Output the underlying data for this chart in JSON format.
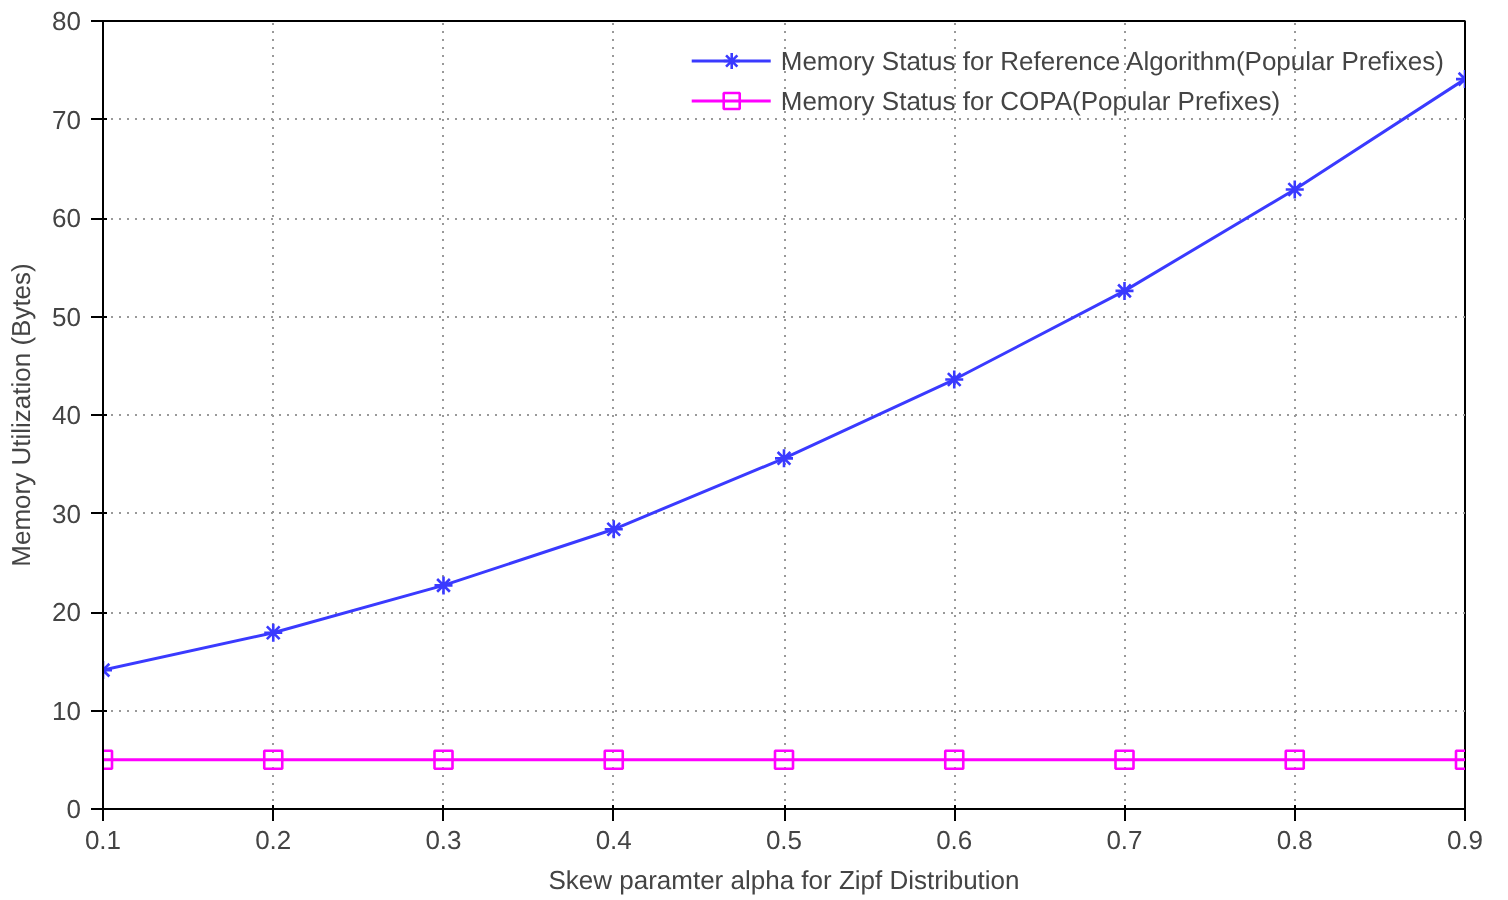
{
  "chart_data": {
    "type": "line",
    "xlabel": "Skew paramter alpha for Zipf Distribution",
    "ylabel": "Memory Utilization (Bytes)",
    "x": [
      0.1,
      0.2,
      0.3,
      0.4,
      0.5,
      0.6,
      0.7,
      0.8,
      0.9
    ],
    "series": [
      {
        "name": "Memory Status for Reference Algorithm(Popular Prefixes)",
        "color": "#3a3aff",
        "marker": "cross",
        "values": [
          14.1,
          17.9,
          22.7,
          28.4,
          35.6,
          43.6,
          52.6,
          62.9,
          74.1
        ]
      },
      {
        "name": "Memory Status for COPA(Popular Prefixes)",
        "color": "#ff00ff",
        "marker": "square",
        "values": [
          5,
          5,
          5,
          5,
          5,
          5,
          5,
          5,
          5
        ]
      }
    ],
    "xlim": [
      0.1,
      0.9
    ],
    "ylim": [
      0,
      80
    ],
    "xticks": [
      0.1,
      0.2,
      0.3,
      0.4,
      0.5,
      0.6,
      0.7,
      0.8,
      0.9
    ],
    "yticks": [
      0,
      10,
      20,
      30,
      40,
      50,
      60,
      70,
      80
    ],
    "grid": true,
    "legend": "top right",
    "line_style": "solid"
  }
}
